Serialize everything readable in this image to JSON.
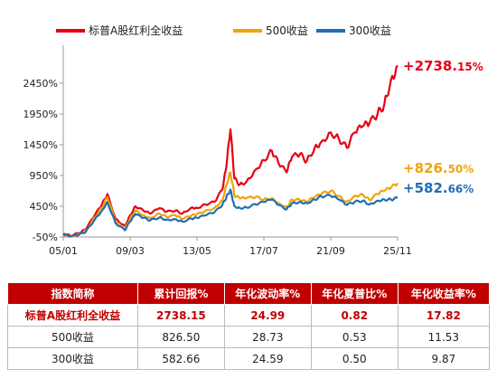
{
  "chart_data": {
    "type": "line",
    "x": [
      "2005-01",
      "2005-06",
      "2006-01",
      "2006-06",
      "2007-01",
      "2007-06",
      "2007-10",
      "2008-04",
      "2008-11",
      "2009-03",
      "2009-07",
      "2010-01",
      "2010-06",
      "2011-01",
      "2011-06",
      "2012-01",
      "2012-06",
      "2013-01",
      "2013-05",
      "2013-11",
      "2014-06",
      "2014-12",
      "2015-03",
      "2015-06",
      "2015-09",
      "2016-01",
      "2016-06",
      "2017-01",
      "2017-07",
      "2018-01",
      "2018-06",
      "2018-12",
      "2019-04",
      "2019-10",
      "2020-03",
      "2020-09",
      "2021-02",
      "2021-09",
      "2022-03",
      "2022-09",
      "2023-03",
      "2023-09",
      "2024-02",
      "2024-08",
      "2025-01",
      "2025-06",
      "2025-11"
    ],
    "series": [
      {
        "name": "标普A股红利全收益",
        "color": "#e60012",
        "end_value": 2738.15,
        "end_label": "+2738.",
        "end_label_small": "15%",
        "values": [
          0,
          -30,
          10,
          80,
          320,
          480,
          650,
          250,
          130,
          300,
          450,
          380,
          330,
          420,
          360,
          380,
          330,
          430,
          420,
          480,
          520,
          720,
          1100,
          1700,
          900,
          800,
          850,
          1050,
          1200,
          1350,
          1150,
          1000,
          1250,
          1300,
          1180,
          1400,
          1500,
          1650,
          1550,
          1400,
          1650,
          1750,
          1800,
          1950,
          2100,
          2500,
          2738.15
        ]
      },
      {
        "name": "500收益",
        "color": "#f0a30a",
        "end_value": 826.5,
        "end_label": "+826.",
        "end_label_small": "50%",
        "values": [
          0,
          -40,
          0,
          60,
          280,
          430,
          600,
          200,
          80,
          250,
          380,
          300,
          260,
          330,
          280,
          300,
          240,
          300,
          320,
          370,
          420,
          550,
          800,
          1000,
          620,
          580,
          580,
          600,
          560,
          580,
          500,
          430,
          560,
          550,
          520,
          600,
          650,
          700,
          620,
          520,
          620,
          640,
          550,
          650,
          700,
          750,
          826.5
        ]
      },
      {
        "name": "300收益",
        "color": "#1f6fb5",
        "end_value": 582.66,
        "end_label": "+582.",
        "end_label_small": "66%",
        "values": [
          0,
          -45,
          -10,
          40,
          250,
          380,
          520,
          180,
          60,
          200,
          320,
          260,
          220,
          270,
          230,
          240,
          200,
          250,
          260,
          300,
          350,
          470,
          600,
          720,
          450,
          420,
          430,
          480,
          520,
          560,
          470,
          400,
          500,
          520,
          500,
          560,
          610,
          620,
          560,
          470,
          520,
          540,
          480,
          540,
          560,
          560,
          582.66
        ]
      }
    ],
    "x_tick_labels": [
      "05/01",
      "09/03",
      "13/05",
      "17/07",
      "21/09",
      "25/11"
    ],
    "x_tick_values": [
      "2005-01",
      "2009-03",
      "2013-05",
      "2017-07",
      "2021-09",
      "2025-11"
    ],
    "y_tick_labels": [
      "-50%",
      "450%",
      "950%",
      "1450%",
      "1950%",
      "2450%"
    ],
    "y_tick_values": [
      -50,
      450,
      950,
      1450,
      1950,
      2450
    ],
    "ylim": [
      -50,
      2950
    ],
    "xlim": [
      "2005-01",
      "2025-11"
    ],
    "legend_position": "top",
    "grid": false
  },
  "table": {
    "headers": [
      "指数简称",
      "累计回报%",
      "年化波动率%",
      "年化夏普比%",
      "年化收益率%"
    ],
    "rows": [
      {
        "cells": [
          "标普A股红利全收益",
          "2738.15",
          "24.99",
          "0.82",
          "17.82"
        ],
        "highlight": true
      },
      {
        "cells": [
          "500收益",
          "826.50",
          "28.73",
          "0.53",
          "11.53"
        ],
        "highlight": false
      },
      {
        "cells": [
          "300收益",
          "582.66",
          "24.59",
          "0.50",
          "9.87"
        ],
        "highlight": false
      }
    ]
  }
}
